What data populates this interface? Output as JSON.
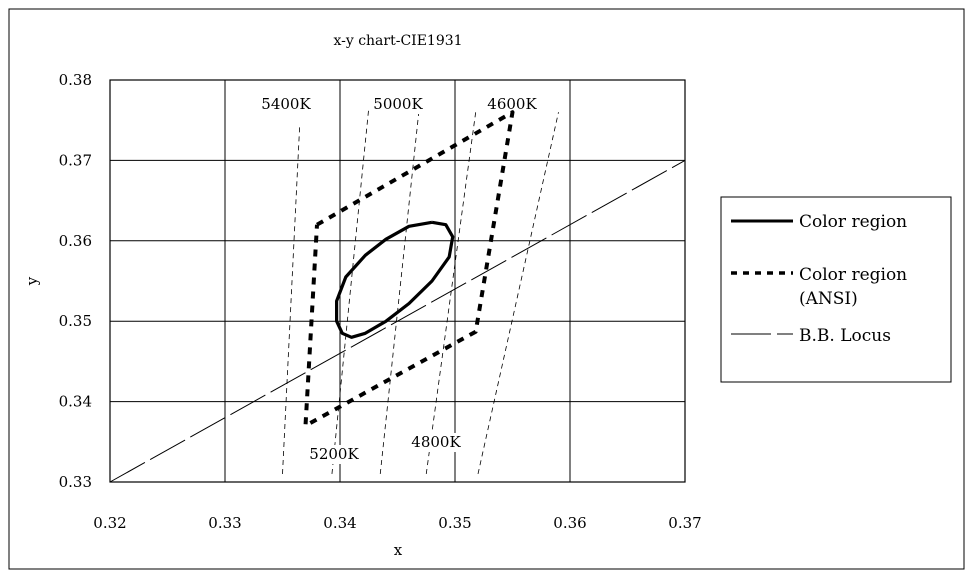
{
  "chart_data": {
    "type": "line",
    "title": "x-y chart-CIE1931",
    "xlabel": "x",
    "ylabel": "y",
    "xlim": [
      0.32,
      0.37
    ],
    "ylim": [
      0.33,
      0.38
    ],
    "x_ticks": [
      "0.32",
      "0.33",
      "0.34",
      "0.35",
      "0.36",
      "0.37"
    ],
    "y_ticks": [
      "0.33",
      "0.34",
      "0.35",
      "0.36",
      "0.37",
      "0.38"
    ],
    "grid": true,
    "legend_position": "right",
    "series": [
      {
        "name": "Color region",
        "style": "solid-thick",
        "color": "#000000",
        "shape": "ellipse",
        "points": [
          [
            0.348,
            0.3623
          ],
          [
            0.3492,
            0.362
          ],
          [
            0.3498,
            0.3605
          ],
          [
            0.3495,
            0.358
          ],
          [
            0.348,
            0.355
          ],
          [
            0.346,
            0.3522
          ],
          [
            0.344,
            0.35
          ],
          [
            0.3422,
            0.3485
          ],
          [
            0.341,
            0.348
          ],
          [
            0.3402,
            0.3485
          ],
          [
            0.3397,
            0.35
          ],
          [
            0.3397,
            0.3525
          ],
          [
            0.3405,
            0.3555
          ],
          [
            0.3422,
            0.3582
          ],
          [
            0.344,
            0.3602
          ],
          [
            0.346,
            0.3618
          ],
          [
            0.348,
            0.3623
          ]
        ]
      },
      {
        "name": "Color region (ANSI)",
        "style": "dashed-thick",
        "color": "#000000",
        "points": [
          [
            0.338,
            0.362
          ],
          [
            0.355,
            0.376
          ],
          [
            0.3518,
            0.3487
          ],
          [
            0.337,
            0.337
          ],
          [
            0.338,
            0.362
          ]
        ]
      },
      {
        "name": "B.B. Locus",
        "style": "long-dash-thin",
        "color": "#000000",
        "points": [
          [
            0.32,
            0.33
          ],
          [
            0.37,
            0.37
          ]
        ]
      }
    ],
    "isotherms": [
      {
        "label": "5400K",
        "points": [
          [
            0.335,
            0.331
          ],
          [
            0.3365,
            0.3745
          ]
        ]
      },
      {
        "label": "5200K",
        "points": [
          [
            0.3393,
            0.331
          ],
          [
            0.3425,
            0.3765
          ]
        ]
      },
      {
        "label": "5000K",
        "points": [
          [
            0.3435,
            0.331
          ],
          [
            0.347,
            0.378
          ]
        ]
      },
      {
        "label": "4800K",
        "points": [
          [
            0.3475,
            0.331
          ],
          [
            0.3518,
            0.376
          ]
        ]
      },
      {
        "label": "4600K",
        "points": [
          [
            0.352,
            0.331
          ],
          [
            0.359,
            0.376
          ]
        ]
      }
    ],
    "legend": [
      {
        "label": "Color region",
        "style": "solid-thick"
      },
      {
        "label_lines": [
          "Color region",
          "(ANSI)"
        ],
        "style": "dashed-thick"
      },
      {
        "label": "B.B. Locus",
        "style": "long-dash-thin"
      }
    ]
  }
}
